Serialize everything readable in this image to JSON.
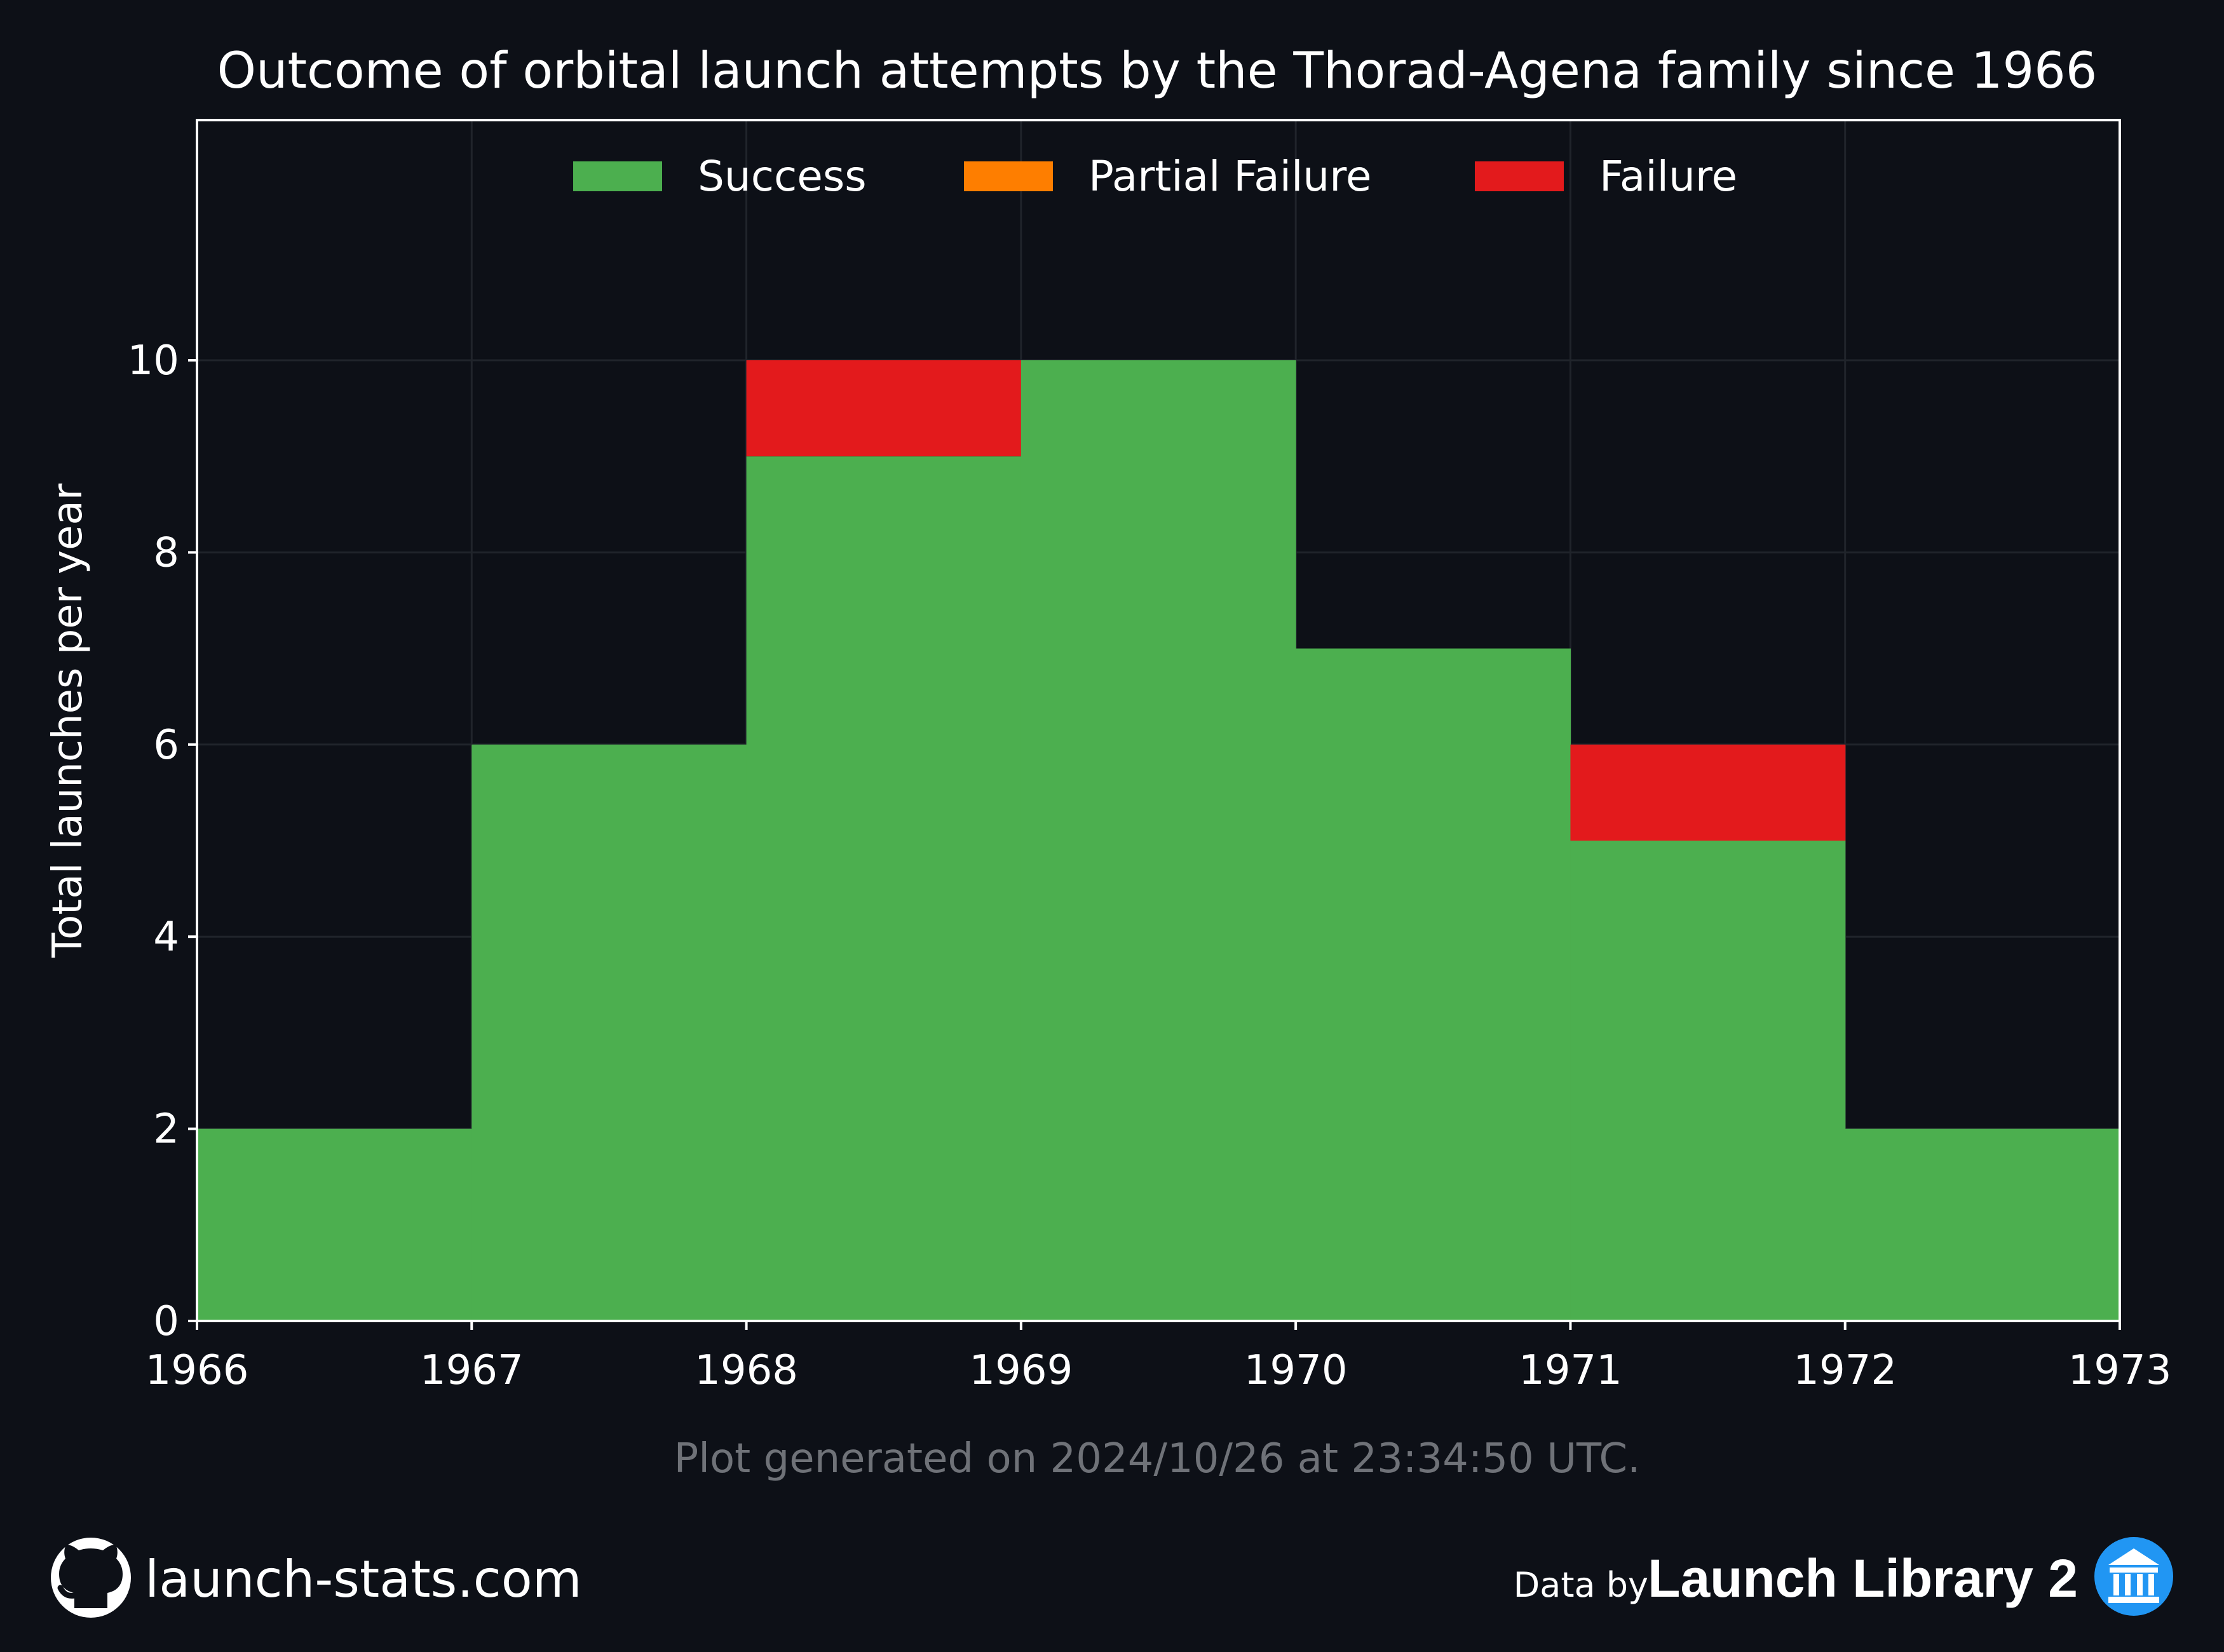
{
  "chart_data": {
    "type": "bar",
    "title": "Outcome of orbital launch attempts by the Thorad-Agena family since 1966",
    "xlabel": "",
    "ylabel": "Total launches per year",
    "categories": [
      "1966",
      "1967",
      "1968",
      "1969",
      "1970",
      "1971",
      "1972"
    ],
    "x_ticks": [
      "1966",
      "1967",
      "1968",
      "1969",
      "1970",
      "1971",
      "1972",
      "1973"
    ],
    "xlim": [
      1966,
      1973
    ],
    "ylim": [
      0,
      12.5
    ],
    "y_ticks": [
      0,
      2,
      4,
      6,
      8,
      10
    ],
    "stacked": true,
    "grid": true,
    "legend_position": "top-center",
    "series": [
      {
        "name": "Success",
        "color": "#4caf4f",
        "values": [
          2,
          6,
          9,
          10,
          7,
          5,
          2
        ]
      },
      {
        "name": "Partial Failure",
        "color": "#fe7e00",
        "values": [
          0,
          0,
          0,
          0,
          0,
          0,
          0
        ]
      },
      {
        "name": "Failure",
        "color": "#e31a1c",
        "values": [
          0,
          0,
          1,
          0,
          0,
          1,
          0
        ]
      }
    ]
  },
  "footer": {
    "generated_note": "Plot generated on 2024/10/26 at 23:34:50 UTC.",
    "site": "launch-stats.com",
    "data_by_prefix": "Data by",
    "data_by_brand": "Launch Library 2",
    "github_icon": "github-icon",
    "library_icon": "library-icon"
  },
  "colors": {
    "background": "#0d1017",
    "axis": "#ffffff",
    "grid": "#20242b",
    "footer_text": "#6f7278",
    "library_badge": "#2196f3"
  }
}
